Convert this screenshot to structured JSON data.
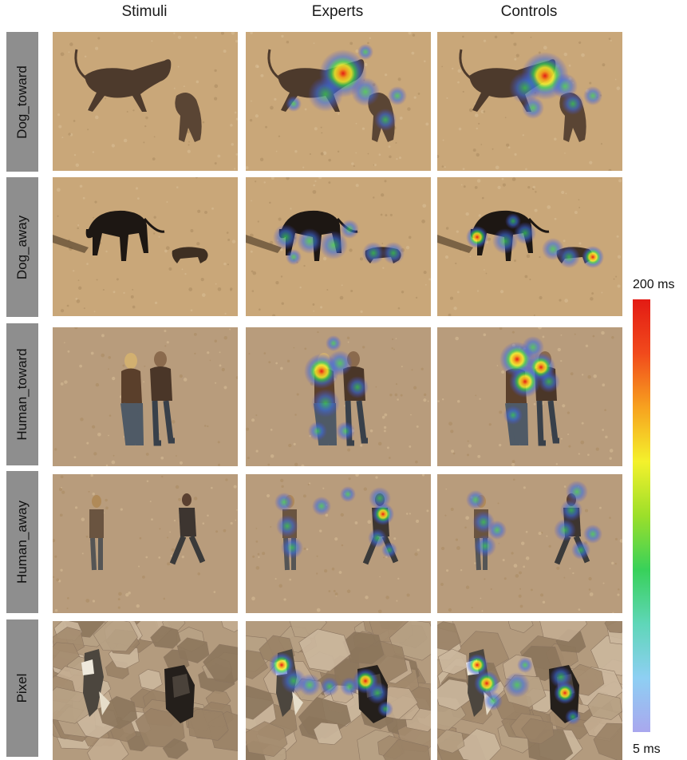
{
  "columns": [
    "Stimuli",
    "Experts",
    "Controls"
  ],
  "rows": [
    "Dog_toward",
    "Dog_away",
    "Human_toward",
    "Human_away",
    "Pixel"
  ],
  "colorbar": {
    "max_label": "200 ms",
    "min_label": "5 ms",
    "stops": [
      "#a9a7ee",
      "#8ecff3",
      "#5fd6b8",
      "#38d15a",
      "#9cdf2a",
      "#f4f12c",
      "#f7a21f",
      "#f14a1c",
      "#e31b14"
    ]
  },
  "colors": {
    "sand": "#c9a779",
    "sand_human": "#b89c7c",
    "tab_gray": "#8e8e8e"
  }
}
